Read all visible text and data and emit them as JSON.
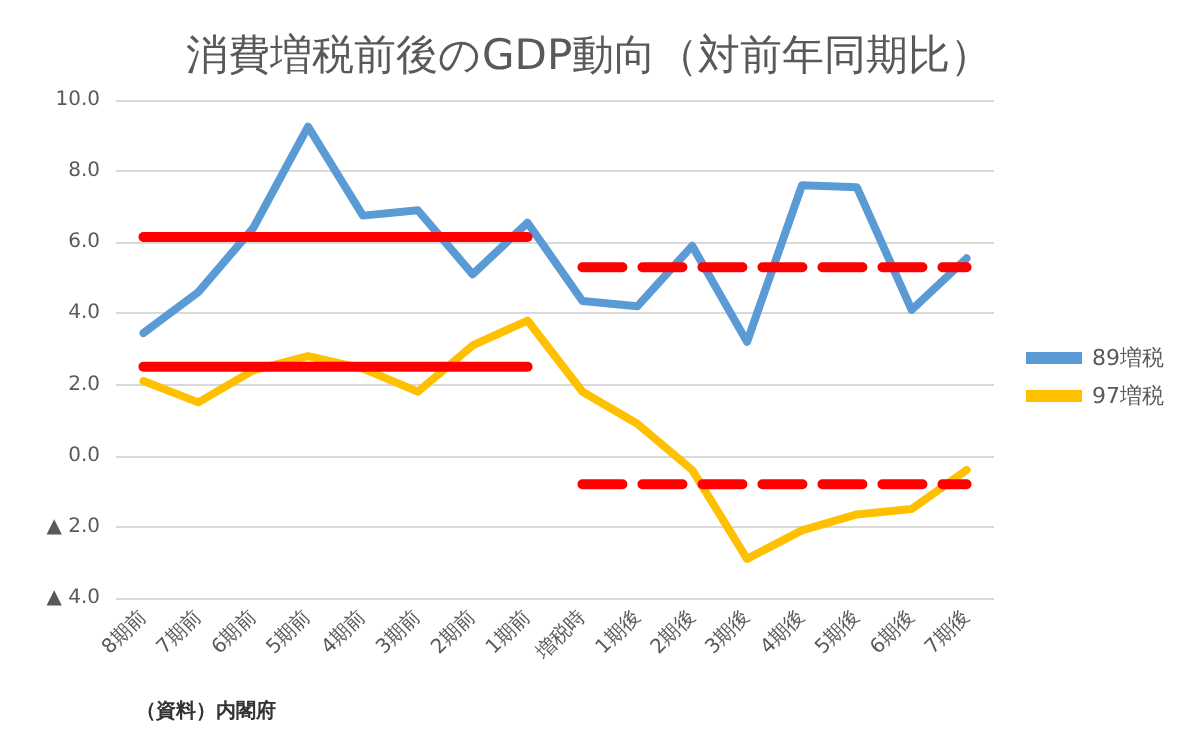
{
  "chart_data": {
    "type": "line",
    "title": "消費増税前後のGDP動向（対前年同期比）",
    "categories": [
      "8期前",
      "7期前",
      "6期前",
      "5期前",
      "4期前",
      "3期前",
      "2期前",
      "1期前",
      "増税時",
      "1期後",
      "2期後",
      "3期後",
      "4期後",
      "5期後",
      "6期後",
      "7期後"
    ],
    "series": [
      {
        "name": "89増税",
        "color": "#5b9bd5",
        "values": [
          3.45,
          4.6,
          6.4,
          9.25,
          6.75,
          6.9,
          5.1,
          6.55,
          4.35,
          4.2,
          5.9,
          3.2,
          7.6,
          7.55,
          4.1,
          5.55
        ]
      },
      {
        "name": "97増税",
        "color": "#ffc000",
        "values": [
          2.1,
          1.5,
          2.4,
          2.8,
          2.45,
          1.8,
          3.1,
          3.8,
          1.8,
          0.9,
          -0.4,
          -2.9,
          -2.1,
          -1.65,
          -1.5,
          -0.4
        ]
      },
      {
        "color": "#ff0000",
        "line_style": "solid",
        "values": [
          6.15,
          6.15,
          6.15,
          6.15,
          6.15,
          6.15,
          6.15,
          6.15,
          null,
          null,
          null,
          null,
          null,
          null,
          null,
          null
        ]
      },
      {
        "color": "#ff0000",
        "line_style": "solid",
        "values": [
          2.5,
          2.5,
          2.5,
          2.5,
          2.5,
          2.5,
          2.5,
          2.5,
          null,
          null,
          null,
          null,
          null,
          null,
          null,
          null
        ]
      },
      {
        "color": "#ff0000",
        "line_style": "dashed",
        "values": [
          null,
          null,
          null,
          null,
          null,
          null,
          null,
          null,
          5.3,
          5.3,
          5.3,
          5.3,
          5.3,
          5.3,
          5.3,
          5.3
        ]
      },
      {
        "color": "#ff0000",
        "line_style": "dashed",
        "values": [
          null,
          null,
          null,
          null,
          null,
          null,
          null,
          null,
          -0.8,
          -0.8,
          -0.8,
          -0.8,
          -0.8,
          -0.8,
          -0.8,
          -0.8
        ]
      }
    ],
    "ylim": [
      -4,
      10
    ],
    "yticks": [
      {
        "value": -4,
        "label": "▲ 4.0"
      },
      {
        "value": -2,
        "label": "▲ 2.0"
      },
      {
        "value": 0,
        "label": "0.0"
      },
      {
        "value": 2,
        "label": "2.0"
      },
      {
        "value": 4,
        "label": "4.0"
      },
      {
        "value": 6,
        "label": "6.0"
      },
      {
        "value": 8,
        "label": "8.0"
      },
      {
        "value": 10,
        "label": "10.0"
      }
    ],
    "grid": "y",
    "legend": "right",
    "marker": "none",
    "line_style": "solid",
    "annotations": [
      "（資料）内閣府"
    ]
  }
}
